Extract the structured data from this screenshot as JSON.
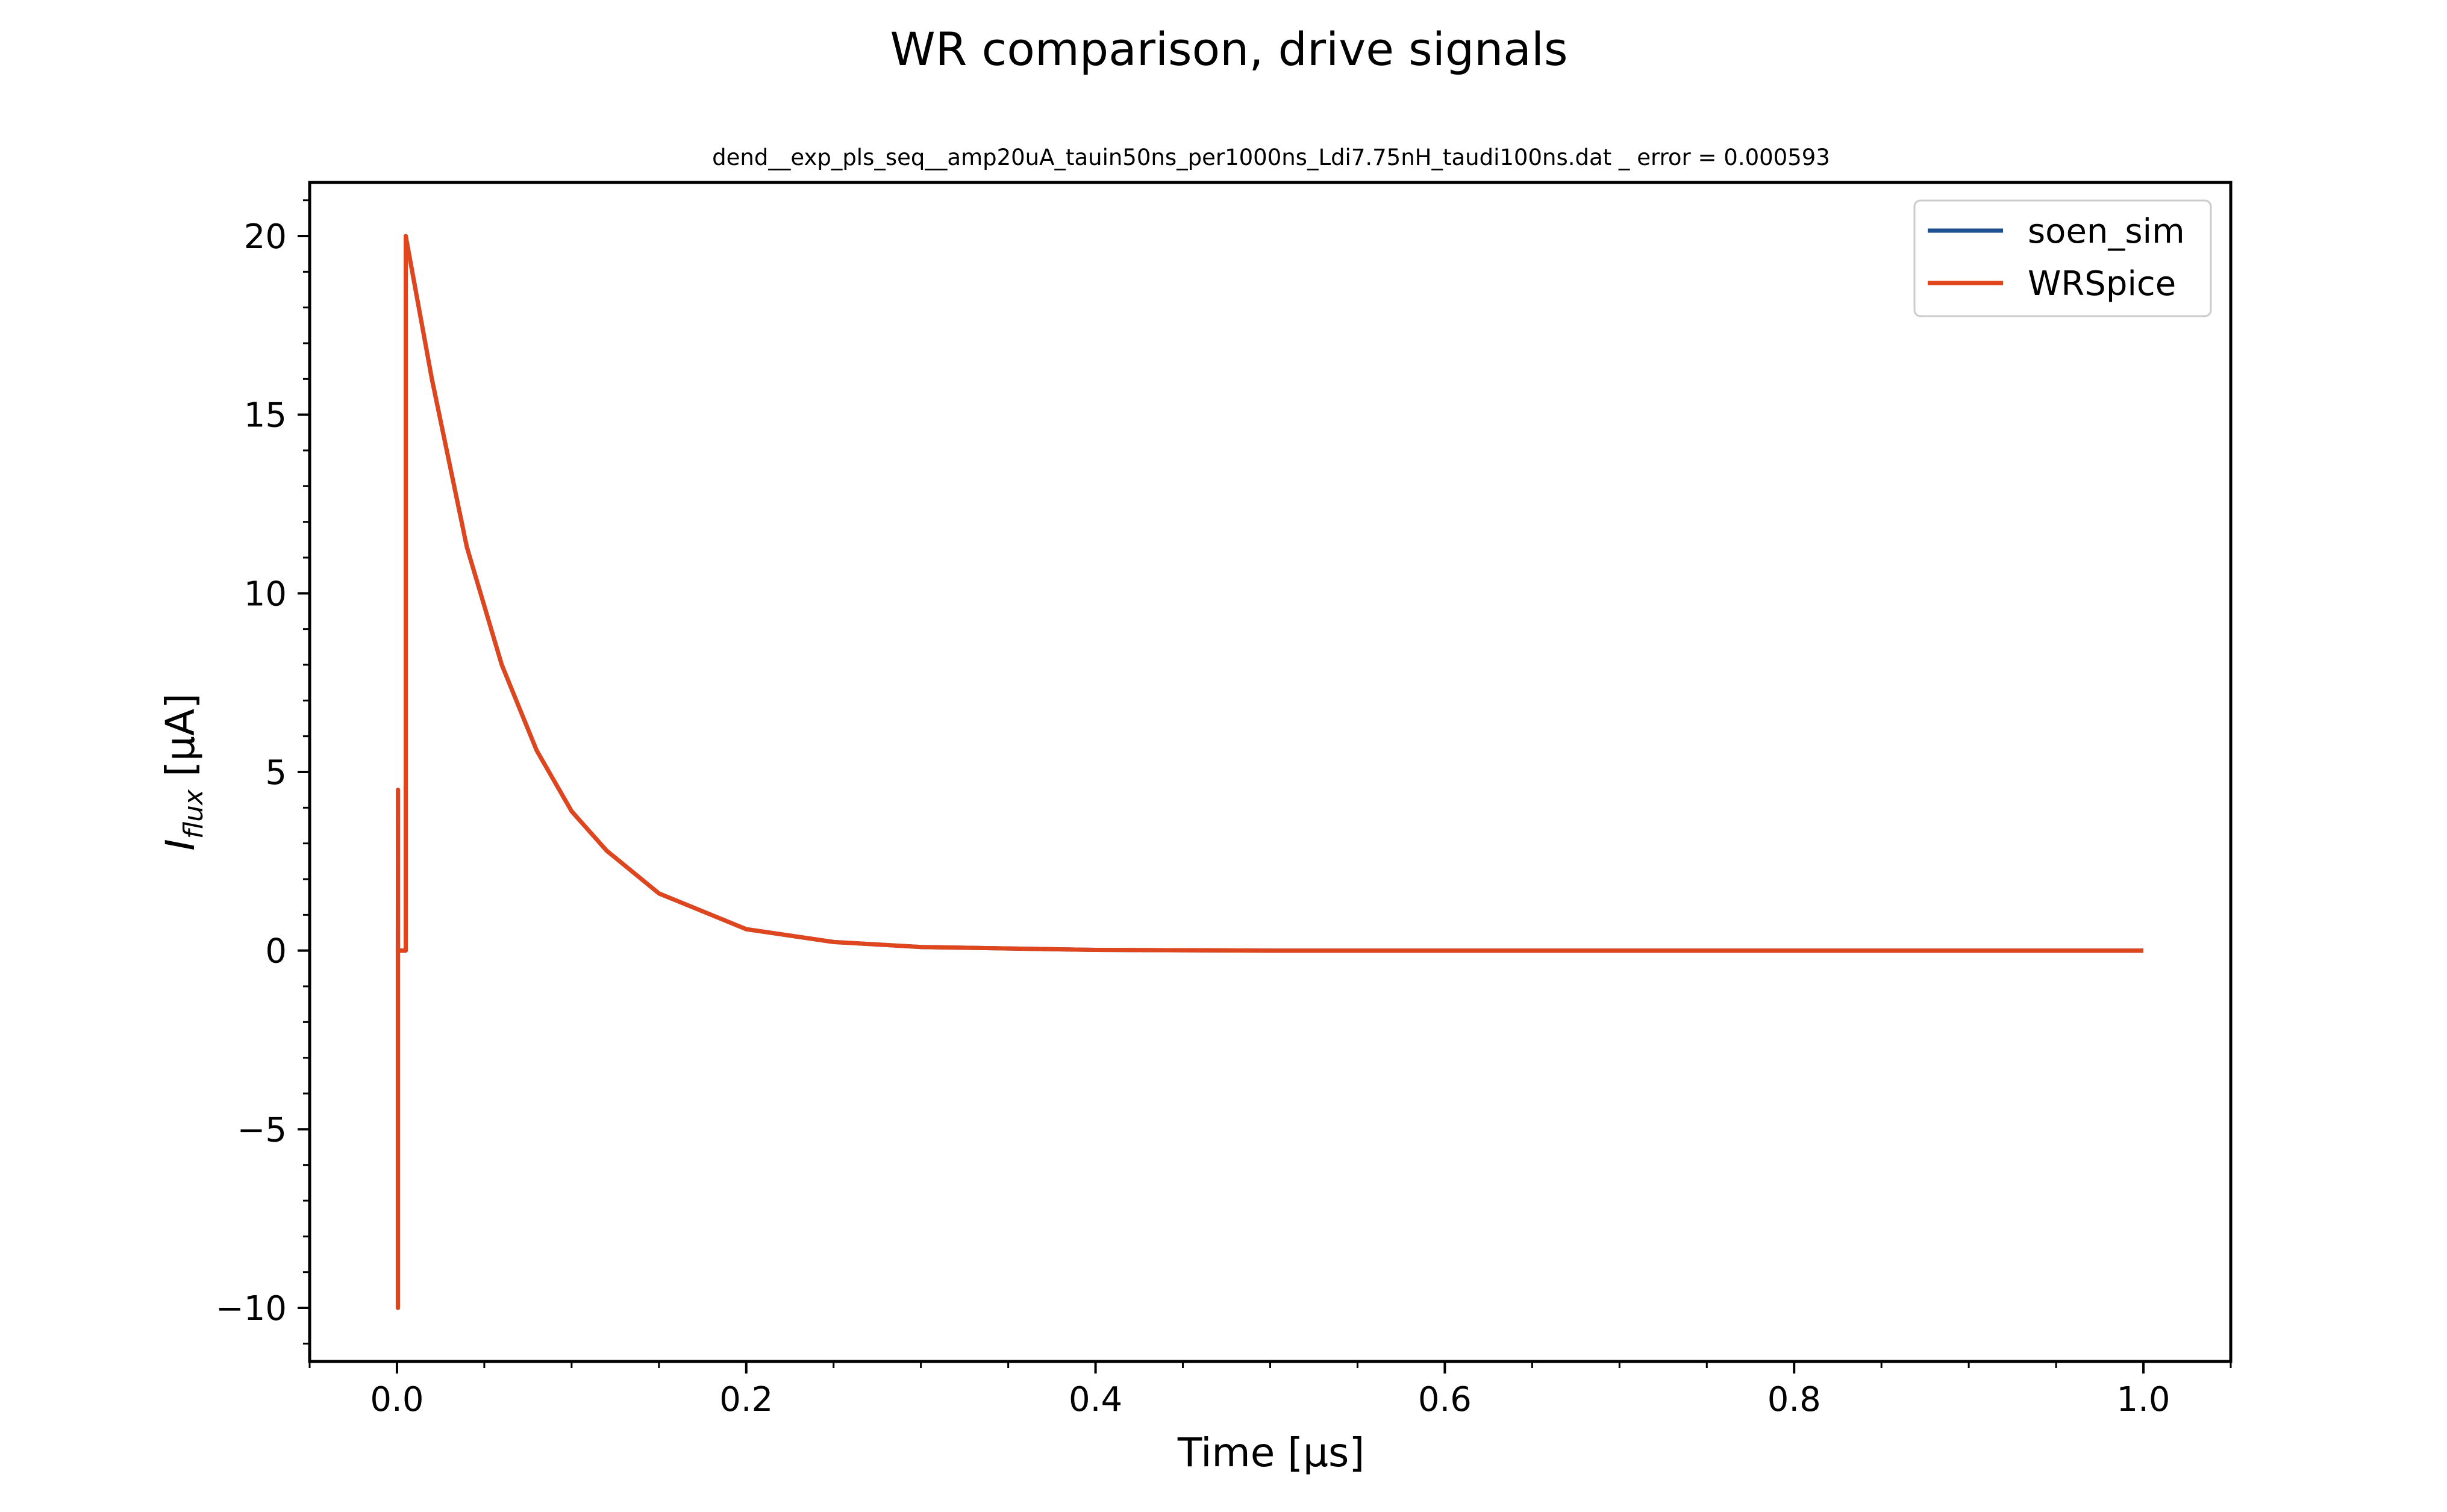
{
  "chart_data": {
    "type": "line",
    "title": "WR comparison, drive signals",
    "subtitle": "dend__exp_pls_seq__amp20uA_tauin50ns_per1000ns_Ldi7.75nH_taudi100ns.dat _ error = 0.000593",
    "xlabel": "Time [μs]",
    "ylabel": {
      "symbol": "I",
      "subscript": "flux",
      "unit": " [μA]"
    },
    "xlim": [
      -0.05,
      1.05
    ],
    "ylim": [
      -11.5,
      21.5
    ],
    "x_ticks": [
      0.0,
      0.2,
      0.4,
      0.6,
      0.8,
      1.0
    ],
    "x_tick_labels": [
      "0.0",
      "0.2",
      "0.4",
      "0.6",
      "0.8",
      "1.0"
    ],
    "y_ticks": [
      -10,
      -5,
      0,
      5,
      10,
      15,
      20
    ],
    "y_tick_labels": [
      "−10",
      "−5",
      "0",
      "5",
      "10",
      "15",
      "20"
    ],
    "x_minor_step": 0.05,
    "y_minor_step": 1,
    "grid": false,
    "legend_position": "top-right",
    "colors": {
      "soen_sim": "#1f4e8c",
      "WRSpice": "#e0461e"
    },
    "series": [
      {
        "name": "soen_sim",
        "x": [
          0.0,
          0.0005,
          0.0006,
          0.0006,
          0.005,
          0.005,
          0.02,
          0.04,
          0.06,
          0.08,
          0.1,
          0.12,
          0.15,
          0.2,
          0.25,
          0.3,
          0.4,
          0.5,
          0.6,
          0.8,
          1.0
        ],
        "y": [
          0,
          0,
          4.5,
          0,
          0,
          20,
          16.0,
          11.3,
          8.0,
          5.6,
          3.9,
          2.8,
          1.6,
          0.6,
          0.24,
          0.1,
          0.02,
          0,
          0,
          0,
          0
        ]
      },
      {
        "name": "WRSpice",
        "x": [
          0.0,
          0.0005,
          0.0005,
          0.0006,
          0.0006,
          0.0006,
          0.005,
          0.005,
          0.02,
          0.04,
          0.06,
          0.08,
          0.1,
          0.12,
          0.15,
          0.2,
          0.25,
          0.3,
          0.4,
          0.5,
          0.6,
          0.8,
          1.0
        ],
        "y": [
          0,
          0,
          -10,
          -10,
          4.5,
          0,
          0,
          20,
          16.0,
          11.3,
          8.0,
          5.6,
          3.9,
          2.8,
          1.6,
          0.6,
          0.24,
          0.1,
          0.02,
          0,
          0,
          0,
          0
        ]
      }
    ]
  }
}
